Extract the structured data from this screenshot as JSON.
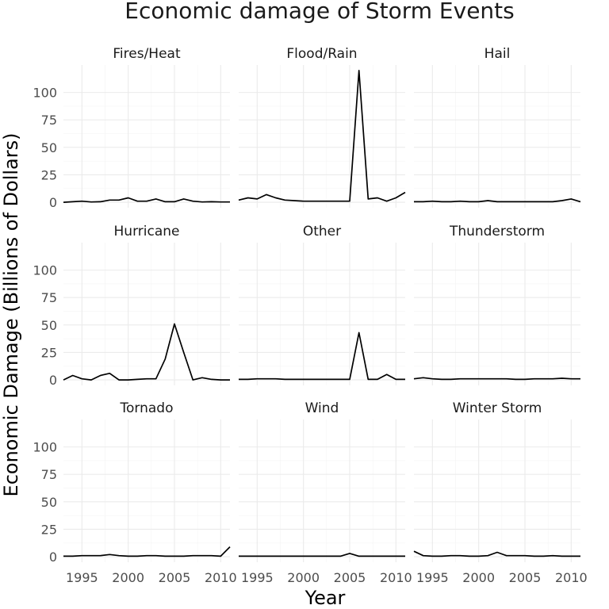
{
  "chart_data": {
    "type": "line",
    "title": "Economic damage of Storm Events",
    "xlabel": "Year",
    "ylabel": "Economic Damage (Billions of Dollars)",
    "xlim": [
      1993,
      2011
    ],
    "ylim": [
      -5,
      125
    ],
    "x_ticks": [
      1995,
      2000,
      2005,
      2010
    ],
    "y_ticks": [
      0,
      25,
      50,
      75,
      100
    ],
    "grid": true,
    "x": [
      1993,
      1994,
      1995,
      1996,
      1997,
      1998,
      1999,
      2000,
      2001,
      2002,
      2003,
      2004,
      2005,
      2006,
      2007,
      2008,
      2009,
      2010,
      2011
    ],
    "panels": [
      {
        "name": "Fires/Heat",
        "values": [
          0,
          0.5,
          1,
          0.3,
          0.5,
          2,
          2,
          4,
          1,
          1,
          3,
          0.5,
          0.5,
          3,
          1,
          0.3,
          0.5,
          0.3,
          0.3
        ]
      },
      {
        "name": "Flood/Rain",
        "values": [
          2,
          4,
          3,
          7,
          4,
          2,
          1.5,
          1,
          1,
          1,
          1,
          1,
          1,
          120,
          3,
          4,
          1,
          4,
          9
        ]
      },
      {
        "name": "Hail",
        "values": [
          0.5,
          0.5,
          1,
          0.5,
          0.5,
          1,
          0.5,
          0.5,
          1.5,
          0.5,
          0.5,
          0.5,
          0.5,
          0.5,
          0.5,
          0.5,
          1.5,
          3,
          0.5
        ]
      },
      {
        "name": "Hurricane",
        "values": [
          0,
          4,
          1,
          0,
          4,
          6,
          0,
          0,
          0.5,
          1,
          1,
          19,
          51,
          25,
          0,
          2,
          0.5,
          0,
          0
        ]
      },
      {
        "name": "Other",
        "values": [
          0.5,
          0.5,
          1,
          1,
          1,
          0.5,
          0.5,
          0.5,
          0.5,
          0.5,
          0.5,
          0.5,
          0.5,
          43,
          0.5,
          0.5,
          5,
          0.5,
          0.5
        ]
      },
      {
        "name": "Thunderstorm",
        "values": [
          1,
          2,
          1,
          0.5,
          0.5,
          1,
          1,
          1,
          1,
          1,
          1,
          0.5,
          0.5,
          1,
          1,
          1,
          1.5,
          1,
          1
        ]
      },
      {
        "name": "Tornado",
        "values": [
          0.5,
          0.5,
          1,
          1,
          1,
          2,
          1,
          0.5,
          0.5,
          1,
          1,
          0.5,
          0.5,
          0.5,
          1,
          1,
          1,
          0.5,
          9
        ]
      },
      {
        "name": "Wind",
        "values": [
          0.5,
          0.5,
          0.5,
          0.5,
          0.5,
          0.5,
          0.5,
          0.5,
          0.5,
          0.5,
          0.5,
          0.5,
          3,
          0.5,
          0.5,
          0.5,
          0.5,
          0.5,
          0.5
        ]
      },
      {
        "name": "Winter Storm",
        "values": [
          5,
          1,
          0.5,
          0.5,
          1,
          1,
          0.5,
          0.5,
          1,
          4,
          1,
          1,
          1,
          0.5,
          0.5,
          1,
          0.5,
          0.5,
          0.5
        ]
      }
    ]
  }
}
